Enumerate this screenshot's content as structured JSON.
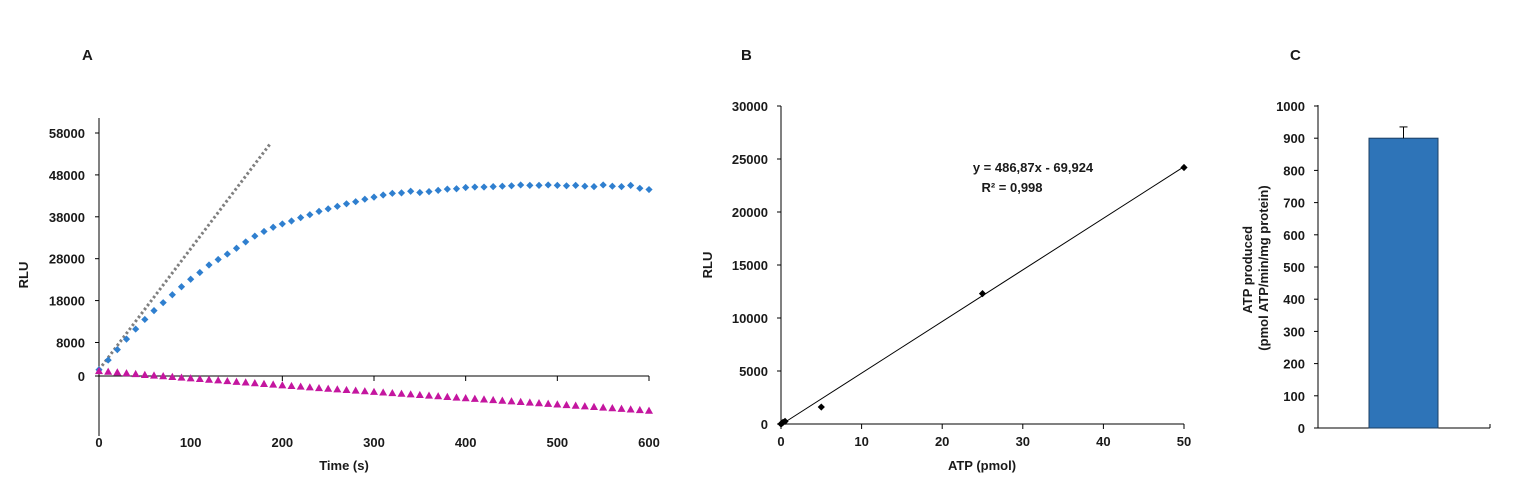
{
  "chart_data": [
    {
      "panel": "A",
      "type": "scatter",
      "xlabel": "Time (s)",
      "ylabel": "RLU",
      "xlim": [
        0,
        600
      ],
      "ylim": [
        -9000,
        58000
      ],
      "x_ticks": [
        0,
        100,
        200,
        300,
        400,
        500,
        600
      ],
      "y_ticks": [
        0,
        8000,
        18000,
        28000,
        38000,
        48000,
        58000
      ],
      "x_tick_labels": [
        "0",
        "100",
        "200",
        "300",
        "400",
        "500",
        "600"
      ],
      "y_tick_labels": [
        "0",
        "8000",
        "18000",
        "28000",
        "38000",
        "48000",
        "58000"
      ],
      "grid": false,
      "series": [
        {
          "marker": "diamond",
          "color": "#2f7fcf",
          "x": [
            0,
            10,
            20,
            30,
            40,
            50,
            60,
            70,
            80,
            90,
            100,
            110,
            120,
            130,
            140,
            150,
            160,
            170,
            180,
            190,
            200,
            210,
            220,
            230,
            240,
            250,
            260,
            270,
            280,
            290,
            300,
            310,
            320,
            330,
            340,
            350,
            360,
            370,
            380,
            390,
            400,
            410,
            420,
            430,
            440,
            450,
            460,
            470,
            480,
            490,
            500,
            510,
            520,
            530,
            540,
            550,
            560,
            570,
            580,
            590,
            600
          ],
          "y": [
            1500,
            3800,
            6300,
            8800,
            11200,
            13500,
            15600,
            17500,
            19400,
            21300,
            23100,
            24700,
            26500,
            27800,
            29100,
            30500,
            32000,
            33400,
            34500,
            35500,
            36300,
            37000,
            37800,
            38500,
            39300,
            39900,
            40500,
            41100,
            41600,
            42200,
            42700,
            43200,
            43600,
            43700,
            44100,
            43800,
            44000,
            44300,
            44600,
            44700,
            45000,
            45100,
            45100,
            45200,
            45300,
            45400,
            45600,
            45500,
            45500,
            45600,
            45500,
            45400,
            45500,
            45300,
            45200,
            45600,
            45300,
            45200,
            45500,
            44800,
            44500
          ]
        },
        {
          "marker": "triangle",
          "color": "#c4169f",
          "x": [
            0,
            10,
            20,
            30,
            40,
            50,
            60,
            70,
            80,
            90,
            100,
            110,
            120,
            130,
            140,
            150,
            160,
            170,
            180,
            190,
            200,
            210,
            220,
            230,
            240,
            250,
            260,
            270,
            280,
            290,
            300,
            310,
            320,
            330,
            340,
            350,
            360,
            370,
            380,
            390,
            400,
            410,
            420,
            430,
            440,
            450,
            460,
            470,
            480,
            490,
            500,
            510,
            520,
            530,
            540,
            550,
            560,
            570,
            580,
            590,
            600
          ],
          "y": [
            1200,
            1050,
            900,
            700,
            500,
            300,
            150,
            0,
            -180,
            -350,
            -520,
            -680,
            -850,
            -1000,
            -1180,
            -1350,
            -1500,
            -1680,
            -1850,
            -2000,
            -2180,
            -2350,
            -2500,
            -2680,
            -2850,
            -3000,
            -3150,
            -3300,
            -3450,
            -3600,
            -3750,
            -3900,
            -4050,
            -4200,
            -4350,
            -4500,
            -4650,
            -4800,
            -4950,
            -5100,
            -5250,
            -5400,
            -5550,
            -5700,
            -5850,
            -6000,
            -6150,
            -6300,
            -6450,
            -6600,
            -6750,
            -6900,
            -7050,
            -7200,
            -7350,
            -7500,
            -7650,
            -7800,
            -7950,
            -8100,
            -8250
          ]
        },
        {
          "line": "dotted",
          "color": "#7f7f7f",
          "x": [
            0,
            187
          ],
          "y": [
            1500,
            55500
          ]
        }
      ]
    },
    {
      "panel": "B",
      "type": "scatter",
      "xlabel": "ATP (pmol)",
      "ylabel": "RLU",
      "xlim": [
        0,
        50
      ],
      "ylim": [
        0,
        30000
      ],
      "x_ticks": [
        0,
        10,
        20,
        30,
        40,
        50
      ],
      "y_ticks": [
        0,
        5000,
        10000,
        15000,
        20000,
        25000,
        30000
      ],
      "x_tick_labels": [
        "0",
        "10",
        "20",
        "30",
        "40",
        "50"
      ],
      "y_tick_labels": [
        "0",
        "5000",
        "10000",
        "15000",
        "20000",
        "25000",
        "30000"
      ],
      "grid": false,
      "series": [
        {
          "marker": "diamond",
          "color": "#000000",
          "x": [
            0,
            0.1,
            0.25,
            0.5,
            5,
            25,
            50
          ],
          "y": [
            0,
            60,
            150,
            250,
            1600,
            12300,
            24200
          ]
        },
        {
          "line": "solid",
          "color": "#000000",
          "x": [
            0,
            50
          ],
          "y": [
            -69.924,
            24273.576
          ]
        }
      ],
      "annotations": [
        "y = 486,87x - 69,924",
        "R² = 0,998"
      ]
    },
    {
      "panel": "C",
      "type": "bar",
      "ylabel": "ATP produced\n(pmol ATP/min/mg protein)",
      "ylim": [
        0,
        1000
      ],
      "y_ticks": [
        0,
        100,
        200,
        300,
        400,
        500,
        600,
        700,
        800,
        900,
        1000
      ],
      "y_tick_labels": [
        "0",
        "100",
        "200",
        "300",
        "400",
        "500",
        "600",
        "700",
        "800",
        "900",
        "1000"
      ],
      "categories": [
        ""
      ],
      "values": [
        900
      ],
      "error": [
        35
      ],
      "color": "#2e74b8",
      "grid": false
    }
  ],
  "colors": {
    "axis": "#000000",
    "text": "#1a1a1a"
  }
}
